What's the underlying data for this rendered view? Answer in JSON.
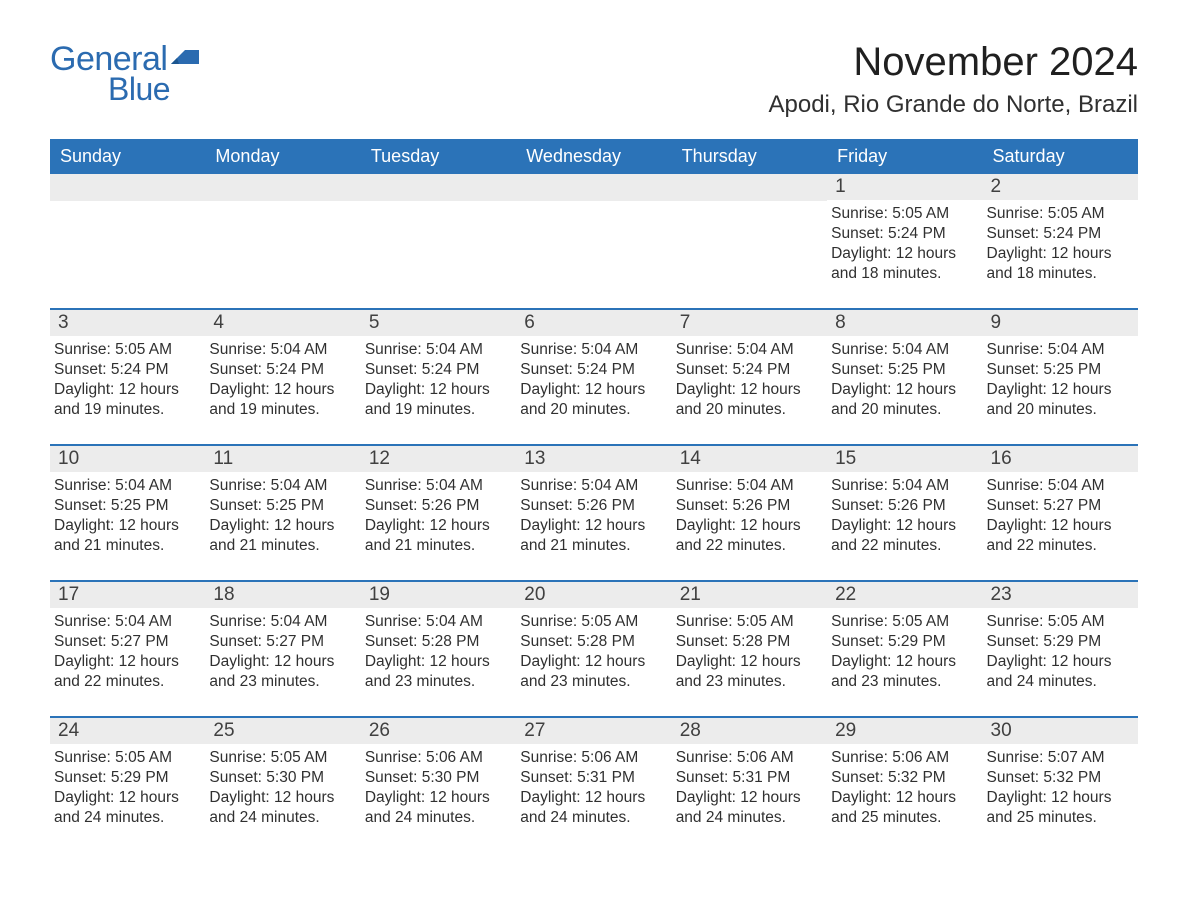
{
  "logo": {
    "text1": "General",
    "text2": "Blue",
    "color": "#2b6bb0"
  },
  "title": "November 2024",
  "location": "Apodi, Rio Grande do Norte, Brazil",
  "colors": {
    "header_bg": "#2b73b8",
    "header_text": "#ffffff",
    "daynum_bg": "#ececec",
    "border": "#2b73b8",
    "body_bg": "#ffffff",
    "text": "#303030"
  },
  "typography": {
    "title_fontsize": 40,
    "location_fontsize": 24,
    "dayheader_fontsize": 18,
    "daynum_fontsize": 19,
    "body_fontsize": 15.5
  },
  "day_headers": [
    "Sunday",
    "Monday",
    "Tuesday",
    "Wednesday",
    "Thursday",
    "Friday",
    "Saturday"
  ],
  "weeks": [
    [
      {
        "n": "",
        "sunrise": "",
        "sunset": "",
        "daylight": ""
      },
      {
        "n": "",
        "sunrise": "",
        "sunset": "",
        "daylight": ""
      },
      {
        "n": "",
        "sunrise": "",
        "sunset": "",
        "daylight": ""
      },
      {
        "n": "",
        "sunrise": "",
        "sunset": "",
        "daylight": ""
      },
      {
        "n": "",
        "sunrise": "",
        "sunset": "",
        "daylight": ""
      },
      {
        "n": "1",
        "sunrise": "Sunrise: 5:05 AM",
        "sunset": "Sunset: 5:24 PM",
        "daylight": "Daylight: 12 hours and 18 minutes."
      },
      {
        "n": "2",
        "sunrise": "Sunrise: 5:05 AM",
        "sunset": "Sunset: 5:24 PM",
        "daylight": "Daylight: 12 hours and 18 minutes."
      }
    ],
    [
      {
        "n": "3",
        "sunrise": "Sunrise: 5:05 AM",
        "sunset": "Sunset: 5:24 PM",
        "daylight": "Daylight: 12 hours and 19 minutes."
      },
      {
        "n": "4",
        "sunrise": "Sunrise: 5:04 AM",
        "sunset": "Sunset: 5:24 PM",
        "daylight": "Daylight: 12 hours and 19 minutes."
      },
      {
        "n": "5",
        "sunrise": "Sunrise: 5:04 AM",
        "sunset": "Sunset: 5:24 PM",
        "daylight": "Daylight: 12 hours and 19 minutes."
      },
      {
        "n": "6",
        "sunrise": "Sunrise: 5:04 AM",
        "sunset": "Sunset: 5:24 PM",
        "daylight": "Daylight: 12 hours and 20 minutes."
      },
      {
        "n": "7",
        "sunrise": "Sunrise: 5:04 AM",
        "sunset": "Sunset: 5:24 PM",
        "daylight": "Daylight: 12 hours and 20 minutes."
      },
      {
        "n": "8",
        "sunrise": "Sunrise: 5:04 AM",
        "sunset": "Sunset: 5:25 PM",
        "daylight": "Daylight: 12 hours and 20 minutes."
      },
      {
        "n": "9",
        "sunrise": "Sunrise: 5:04 AM",
        "sunset": "Sunset: 5:25 PM",
        "daylight": "Daylight: 12 hours and 20 minutes."
      }
    ],
    [
      {
        "n": "10",
        "sunrise": "Sunrise: 5:04 AM",
        "sunset": "Sunset: 5:25 PM",
        "daylight": "Daylight: 12 hours and 21 minutes."
      },
      {
        "n": "11",
        "sunrise": "Sunrise: 5:04 AM",
        "sunset": "Sunset: 5:25 PM",
        "daylight": "Daylight: 12 hours and 21 minutes."
      },
      {
        "n": "12",
        "sunrise": "Sunrise: 5:04 AM",
        "sunset": "Sunset: 5:26 PM",
        "daylight": "Daylight: 12 hours and 21 minutes."
      },
      {
        "n": "13",
        "sunrise": "Sunrise: 5:04 AM",
        "sunset": "Sunset: 5:26 PM",
        "daylight": "Daylight: 12 hours and 21 minutes."
      },
      {
        "n": "14",
        "sunrise": "Sunrise: 5:04 AM",
        "sunset": "Sunset: 5:26 PM",
        "daylight": "Daylight: 12 hours and 22 minutes."
      },
      {
        "n": "15",
        "sunrise": "Sunrise: 5:04 AM",
        "sunset": "Sunset: 5:26 PM",
        "daylight": "Daylight: 12 hours and 22 minutes."
      },
      {
        "n": "16",
        "sunrise": "Sunrise: 5:04 AM",
        "sunset": "Sunset: 5:27 PM",
        "daylight": "Daylight: 12 hours and 22 minutes."
      }
    ],
    [
      {
        "n": "17",
        "sunrise": "Sunrise: 5:04 AM",
        "sunset": "Sunset: 5:27 PM",
        "daylight": "Daylight: 12 hours and 22 minutes."
      },
      {
        "n": "18",
        "sunrise": "Sunrise: 5:04 AM",
        "sunset": "Sunset: 5:27 PM",
        "daylight": "Daylight: 12 hours and 23 minutes."
      },
      {
        "n": "19",
        "sunrise": "Sunrise: 5:04 AM",
        "sunset": "Sunset: 5:28 PM",
        "daylight": "Daylight: 12 hours and 23 minutes."
      },
      {
        "n": "20",
        "sunrise": "Sunrise: 5:05 AM",
        "sunset": "Sunset: 5:28 PM",
        "daylight": "Daylight: 12 hours and 23 minutes."
      },
      {
        "n": "21",
        "sunrise": "Sunrise: 5:05 AM",
        "sunset": "Sunset: 5:28 PM",
        "daylight": "Daylight: 12 hours and 23 minutes."
      },
      {
        "n": "22",
        "sunrise": "Sunrise: 5:05 AM",
        "sunset": "Sunset: 5:29 PM",
        "daylight": "Daylight: 12 hours and 23 minutes."
      },
      {
        "n": "23",
        "sunrise": "Sunrise: 5:05 AM",
        "sunset": "Sunset: 5:29 PM",
        "daylight": "Daylight: 12 hours and 24 minutes."
      }
    ],
    [
      {
        "n": "24",
        "sunrise": "Sunrise: 5:05 AM",
        "sunset": "Sunset: 5:29 PM",
        "daylight": "Daylight: 12 hours and 24 minutes."
      },
      {
        "n": "25",
        "sunrise": "Sunrise: 5:05 AM",
        "sunset": "Sunset: 5:30 PM",
        "daylight": "Daylight: 12 hours and 24 minutes."
      },
      {
        "n": "26",
        "sunrise": "Sunrise: 5:06 AM",
        "sunset": "Sunset: 5:30 PM",
        "daylight": "Daylight: 12 hours and 24 minutes."
      },
      {
        "n": "27",
        "sunrise": "Sunrise: 5:06 AM",
        "sunset": "Sunset: 5:31 PM",
        "daylight": "Daylight: 12 hours and 24 minutes."
      },
      {
        "n": "28",
        "sunrise": "Sunrise: 5:06 AM",
        "sunset": "Sunset: 5:31 PM",
        "daylight": "Daylight: 12 hours and 24 minutes."
      },
      {
        "n": "29",
        "sunrise": "Sunrise: 5:06 AM",
        "sunset": "Sunset: 5:32 PM",
        "daylight": "Daylight: 12 hours and 25 minutes."
      },
      {
        "n": "30",
        "sunrise": "Sunrise: 5:07 AM",
        "sunset": "Sunset: 5:32 PM",
        "daylight": "Daylight: 12 hours and 25 minutes."
      }
    ]
  ]
}
